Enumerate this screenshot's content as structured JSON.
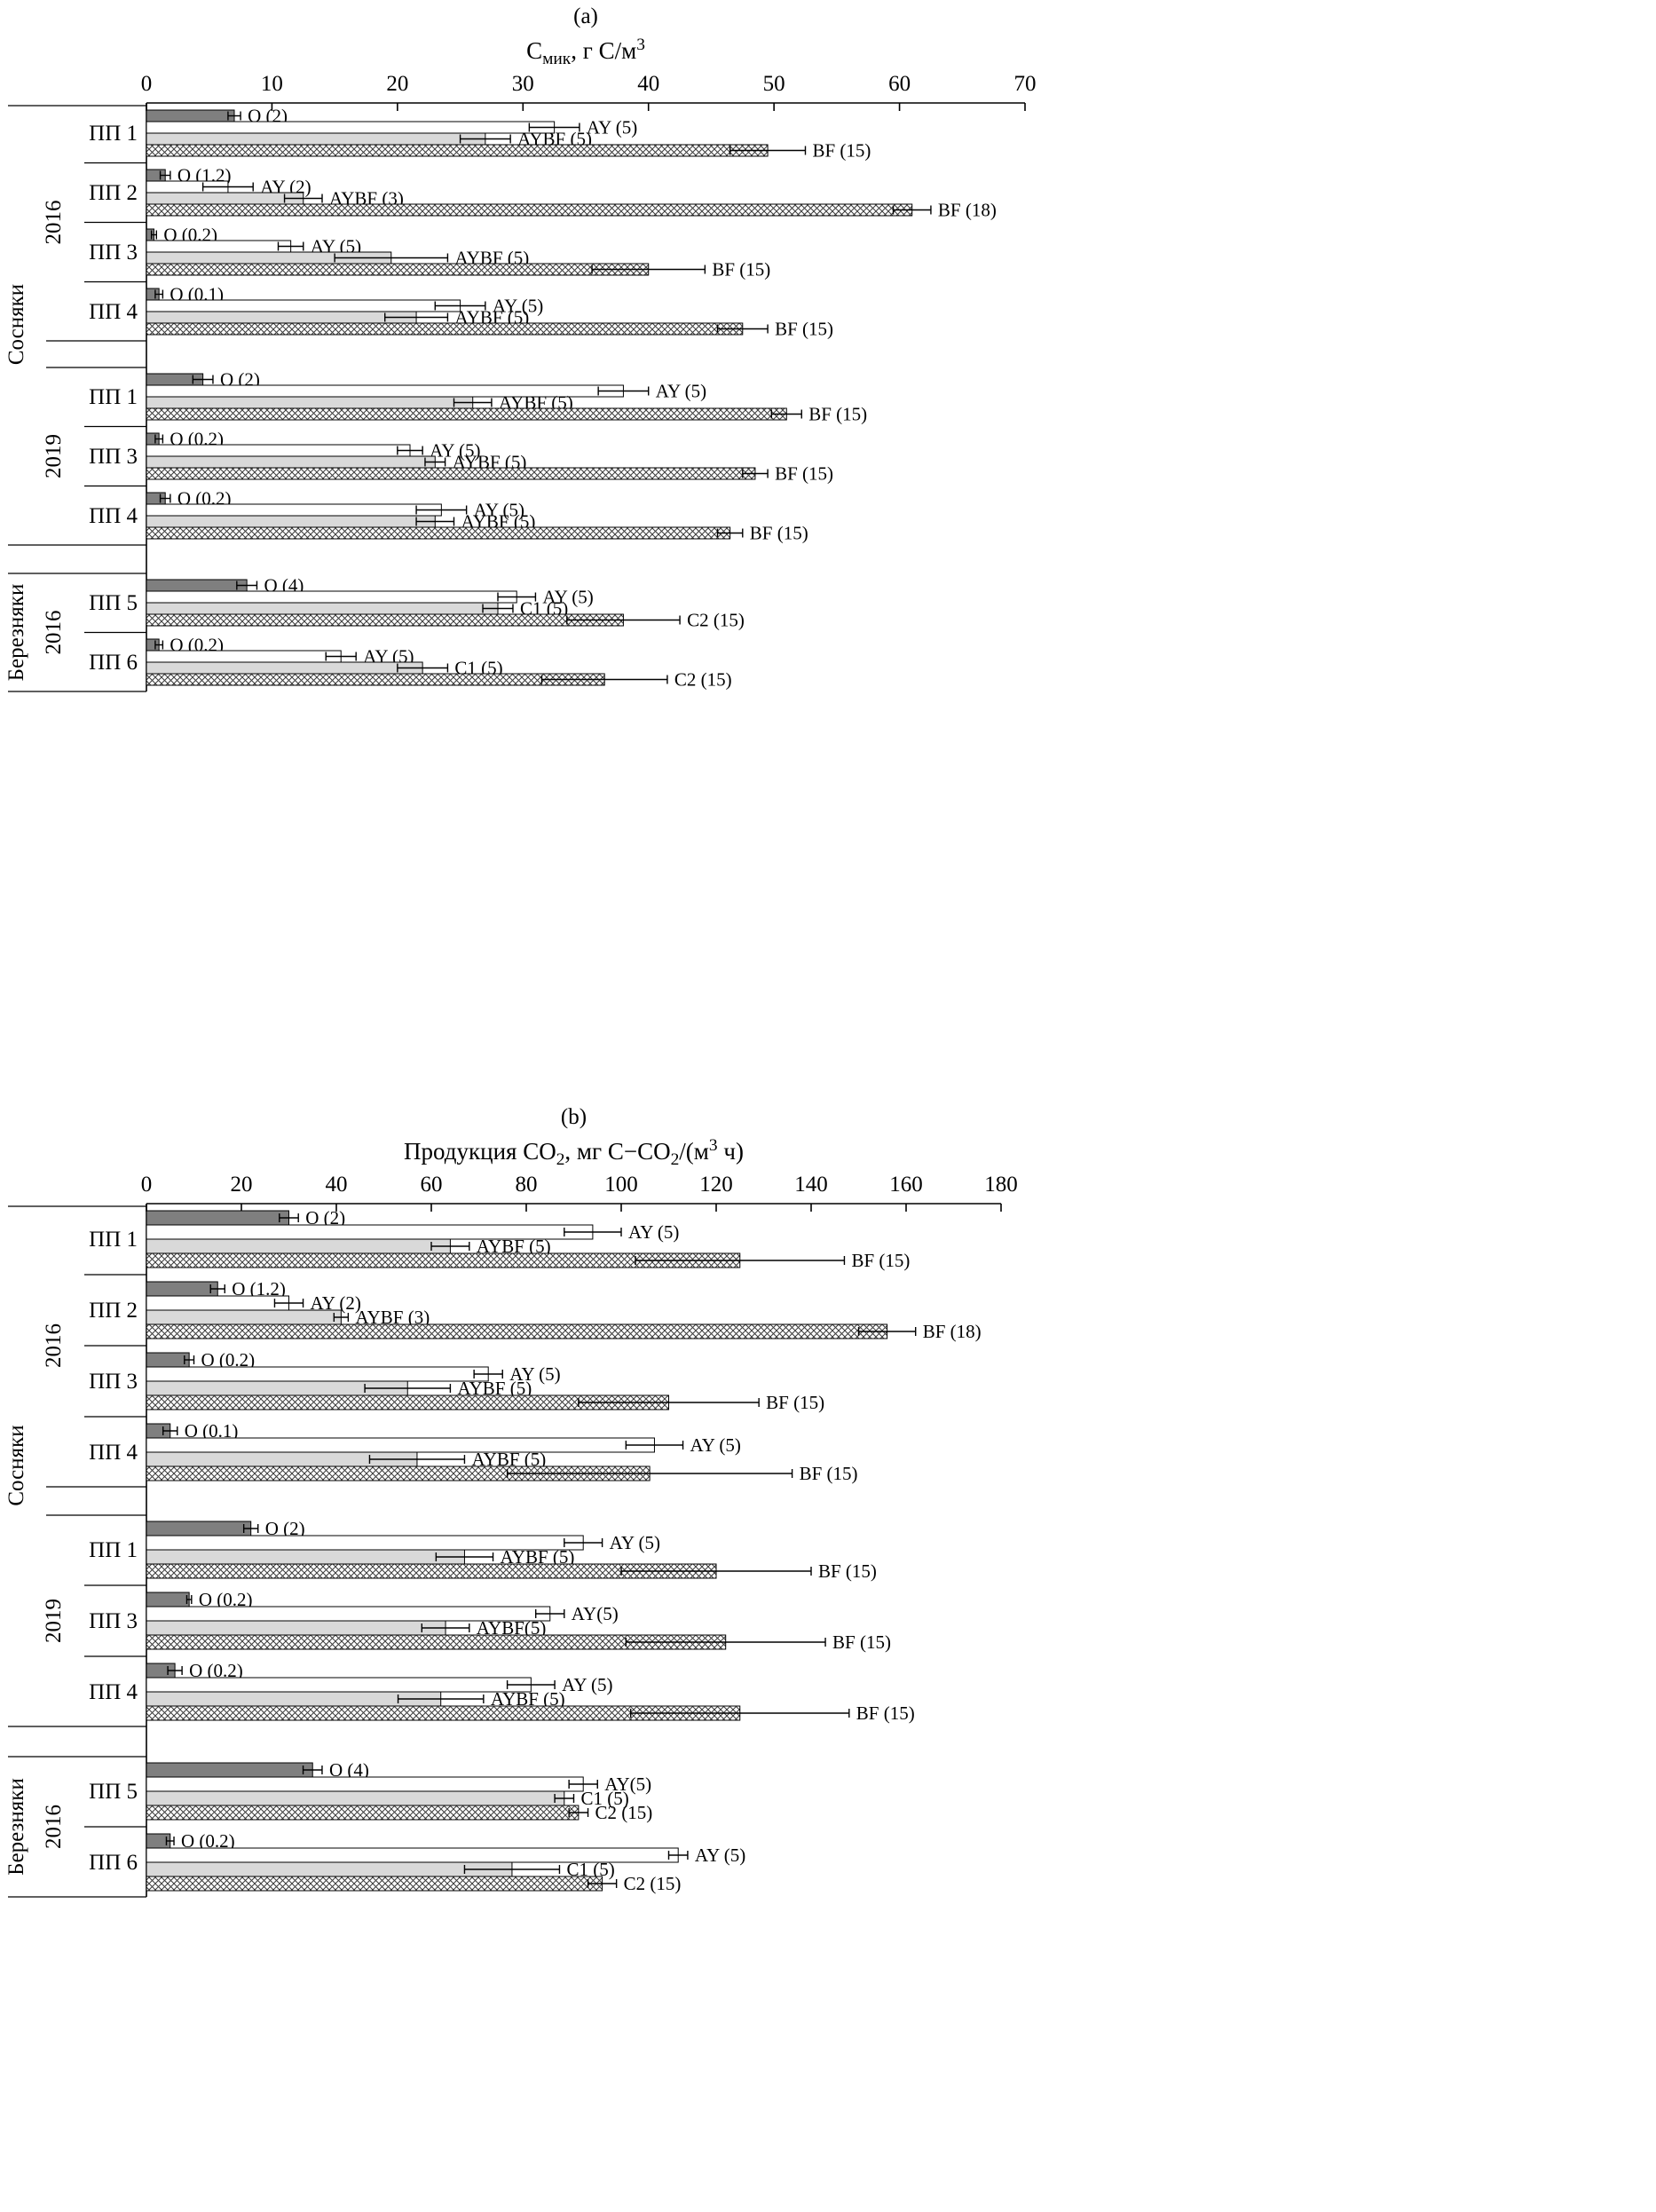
{
  "chart_data": [
    {
      "type": "bar",
      "orientation": "horizontal",
      "panel_label": "(a)",
      "title": "С~мик~, г С/м^3^",
      "xlabel": "",
      "ylabel": "",
      "xlim": [
        0,
        70
      ],
      "xticks": [
        0,
        10,
        20,
        30,
        40,
        50,
        60,
        70
      ],
      "grid": false,
      "legend": "none (labels inline next to bars)",
      "bar_styles": {
        "dark": "#7f7f7f",
        "white": "#ffffff",
        "light": "#d9d9d9",
        "hatch": "crosshatch"
      },
      "groups": [
        {
          "section": "Сосняки",
          "year": "2016",
          "plot": "ПП 1",
          "bars": [
            {
              "label": "O (2)",
              "value": 7,
              "err": 0.5,
              "style": "dark"
            },
            {
              "label": "AY (5)",
              "value": 32.5,
              "err": 2,
              "style": "white"
            },
            {
              "label": "AYBF (5)",
              "value": 27,
              "err": 2,
              "style": "light"
            },
            {
              "label": "BF (15)",
              "value": 49.5,
              "err": 3,
              "style": "hatch"
            }
          ]
        },
        {
          "section": "Сосняки",
          "year": "2016",
          "plot": "ПП 2",
          "bars": [
            {
              "label": "O (1.2)",
              "value": 1.5,
              "err": 0.4,
              "style": "dark"
            },
            {
              "label": "AY (2)",
              "value": 6.5,
              "err": 2,
              "style": "white"
            },
            {
              "label": "AYBF (3)",
              "value": 12.5,
              "err": 1.5,
              "style": "light"
            },
            {
              "label": "BF (18)",
              "value": 61,
              "err": 1.5,
              "style": "hatch"
            }
          ]
        },
        {
          "section": "Сосняки",
          "year": "2016",
          "plot": "ПП 3",
          "bars": [
            {
              "label": "O (0.2)",
              "value": 0.6,
              "err": 0.2,
              "style": "dark"
            },
            {
              "label": "AY (5)",
              "value": 11.5,
              "err": 1,
              "style": "white"
            },
            {
              "label": "AYBF (5)",
              "value": 19.5,
              "err": 4.5,
              "style": "light"
            },
            {
              "label": "BF (15)",
              "value": 40,
              "err": 4.5,
              "style": "hatch"
            }
          ]
        },
        {
          "section": "Сосняки",
          "year": "2016",
          "plot": "ПП 4",
          "bars": [
            {
              "label": "O (0.1)",
              "value": 1,
              "err": 0.3,
              "style": "dark"
            },
            {
              "label": "AY (5)",
              "value": 25,
              "err": 2,
              "style": "white"
            },
            {
              "label": "AYBF (5)",
              "value": 21.5,
              "err": 2.5,
              "style": "light"
            },
            {
              "label": "BF (15)",
              "value": 47.5,
              "err": 2,
              "style": "hatch"
            }
          ]
        },
        {
          "section": "Сосняки",
          "year": "2019",
          "plot": "ПП 1",
          "bars": [
            {
              "label": "O (2)",
              "value": 4.5,
              "err": 0.8,
              "style": "dark"
            },
            {
              "label": "AY (5)",
              "value": 38,
              "err": 2,
              "style": "white"
            },
            {
              "label": "AYBF (5)",
              "value": 26,
              "err": 1.5,
              "style": "light"
            },
            {
              "label": "BF (15)",
              "value": 51,
              "err": 1.2,
              "style": "hatch"
            }
          ]
        },
        {
          "section": "Сосняки",
          "year": "2019",
          "plot": "ПП 3",
          "bars": [
            {
              "label": "O (0.2)",
              "value": 1,
              "err": 0.3,
              "style": "dark"
            },
            {
              "label": "AY (5)",
              "value": 21,
              "err": 1,
              "style": "white"
            },
            {
              "label": "AYBF (5)",
              "value": 23,
              "err": 0.8,
              "style": "light"
            },
            {
              "label": "BF (15)",
              "value": 48.5,
              "err": 1,
              "style": "hatch"
            }
          ]
        },
        {
          "section": "Сосняки",
          "year": "2019",
          "plot": "ПП 4",
          "bars": [
            {
              "label": "O (0.2)",
              "value": 1.5,
              "err": 0.4,
              "style": "dark"
            },
            {
              "label": "AY (5)",
              "value": 23.5,
              "err": 2,
              "style": "white"
            },
            {
              "label": "AYBF (5)",
              "value": 23,
              "err": 1.5,
              "style": "light"
            },
            {
              "label": "BF (15)",
              "value": 46.5,
              "err": 1,
              "style": "hatch"
            }
          ]
        },
        {
          "section": "Березняки",
          "year": "2016",
          "plot": "ПП 5",
          "bars": [
            {
              "label": "O (4)",
              "value": 8,
              "err": 0.8,
              "style": "dark"
            },
            {
              "label": "AY (5)",
              "value": 29.5,
              "err": 1.5,
              "style": "white"
            },
            {
              "label": "C1 (5)",
              "value": 28,
              "err": 1.2,
              "style": "light"
            },
            {
              "label": "C2 (15)",
              "value": 38,
              "err": 4.5,
              "style": "hatch"
            }
          ]
        },
        {
          "section": "Березняки",
          "year": "2016",
          "plot": "ПП 6",
          "bars": [
            {
              "label": "O (0.2)",
              "value": 1,
              "err": 0.3,
              "style": "dark"
            },
            {
              "label": "AY (5)",
              "value": 15.5,
              "err": 1.2,
              "style": "white"
            },
            {
              "label": "C1 (5)",
              "value": 22,
              "err": 2,
              "style": "light"
            },
            {
              "label": "C2 (15)",
              "value": 36.5,
              "err": 5,
              "style": "hatch"
            }
          ]
        }
      ]
    },
    {
      "type": "bar",
      "orientation": "horizontal",
      "panel_label": "(b)",
      "title": "Продукция СО~2~, мг С−СО~2~/(м^3^ ч)",
      "xlabel": "",
      "ylabel": "",
      "xlim": [
        0,
        180
      ],
      "xticks": [
        0,
        20,
        40,
        60,
        80,
        100,
        120,
        140,
        160,
        180
      ],
      "grid": false,
      "legend": "none (labels inline next to bars)",
      "bar_styles": {
        "dark": "#7f7f7f",
        "white": "#ffffff",
        "light": "#d9d9d9",
        "hatch": "crosshatch"
      },
      "groups": [
        {
          "section": "Сосняки",
          "year": "2016",
          "plot": "ПП 1",
          "bars": [
            {
              "label": "O (2)",
              "value": 30,
              "err": 2,
              "style": "dark"
            },
            {
              "label": "AY (5)",
              "value": 94,
              "err": 6,
              "style": "white"
            },
            {
              "label": "AYBF (5)",
              "value": 64,
              "err": 4,
              "style": "light"
            },
            {
              "label": "BF (15)",
              "value": 125,
              "err": 22,
              "style": "hatch"
            }
          ]
        },
        {
          "section": "Сосняки",
          "year": "2016",
          "plot": "ПП 2",
          "bars": [
            {
              "label": "O (1.2)",
              "value": 15,
              "err": 1.5,
              "style": "dark"
            },
            {
              "label": "AY (2)",
              "value": 30,
              "err": 3,
              "style": "white"
            },
            {
              "label": "AYBF (3)",
              "value": 41,
              "err": 1.5,
              "style": "light"
            },
            {
              "label": "BF (18)",
              "value": 156,
              "err": 6,
              "style": "hatch"
            }
          ]
        },
        {
          "section": "Сосняки",
          "year": "2016",
          "plot": "ПП 3",
          "bars": [
            {
              "label": "O (0.2)",
              "value": 9,
              "err": 1,
              "style": "dark"
            },
            {
              "label": "AY (5)",
              "value": 72,
              "err": 3,
              "style": "white"
            },
            {
              "label": "AYBF (5)",
              "value": 55,
              "err": 9,
              "style": "light"
            },
            {
              "label": "BF (15)",
              "value": 110,
              "err": 19,
              "style": "hatch"
            }
          ]
        },
        {
          "section": "Сосняки",
          "year": "2016",
          "plot": "ПП 4",
          "bars": [
            {
              "label": "O (0.1)",
              "value": 5,
              "err": 1.5,
              "style": "dark"
            },
            {
              "label": "AY (5)",
              "value": 107,
              "err": 6,
              "style": "white"
            },
            {
              "label": "AYBF (5)",
              "value": 57,
              "err": 10,
              "style": "light"
            },
            {
              "label": "BF (15)",
              "value": 106,
              "err": 30,
              "style": "hatch"
            }
          ]
        },
        {
          "section": "Сосняки",
          "year": "2019",
          "plot": "ПП 1",
          "bars": [
            {
              "label": "O (2)",
              "value": 22,
              "err": 1.5,
              "style": "dark"
            },
            {
              "label": "AY (5)",
              "value": 92,
              "err": 4,
              "style": "white"
            },
            {
              "label": "AYBF (5)",
              "value": 67,
              "err": 6,
              "style": "light"
            },
            {
              "label": "BF (15)",
              "value": 120,
              "err": 20,
              "style": "hatch"
            }
          ]
        },
        {
          "section": "Сосняки",
          "year": "2019",
          "plot": "ПП 3",
          "bars": [
            {
              "label": "O (0.2)",
              "value": 9,
              "err": 0.5,
              "style": "dark"
            },
            {
              "label": "AY(5)",
              "value": 85,
              "err": 3,
              "style": "white"
            },
            {
              "label": "AYBF(5)",
              "value": 63,
              "err": 5,
              "style": "light"
            },
            {
              "label": "BF (15)",
              "value": 122,
              "err": 21,
              "style": "hatch"
            }
          ]
        },
        {
          "section": "Сосняки",
          "year": "2019",
          "plot": "ПП 4",
          "bars": [
            {
              "label": "O (0.2)",
              "value": 6,
              "err": 1.5,
              "style": "dark"
            },
            {
              "label": "AY (5)",
              "value": 81,
              "err": 5,
              "style": "white"
            },
            {
              "label": "AYBF (5)",
              "value": 62,
              "err": 9,
              "style": "light"
            },
            {
              "label": "BF (15)",
              "value": 125,
              "err": 23,
              "style": "hatch"
            }
          ]
        },
        {
          "section": "Березняки",
          "year": "2016",
          "plot": "ПП 5",
          "bars": [
            {
              "label": "O (4)",
              "value": 35,
              "err": 2,
              "style": "dark"
            },
            {
              "label": "AY(5)",
              "value": 92,
              "err": 3,
              "style": "white"
            },
            {
              "label": "C1 (5)",
              "value": 88,
              "err": 2,
              "style": "light"
            },
            {
              "label": "C2 (15)",
              "value": 91,
              "err": 2,
              "style": "hatch"
            }
          ]
        },
        {
          "section": "Березняки",
          "year": "2016",
          "plot": "ПП 6",
          "bars": [
            {
              "label": "O (0.2)",
              "value": 5,
              "err": 0.8,
              "style": "dark"
            },
            {
              "label": "AY (5)",
              "value": 112,
              "err": 2,
              "style": "white"
            },
            {
              "label": "C1 (5)",
              "value": 77,
              "err": 10,
              "style": "light"
            },
            {
              "label": "C2 (15)",
              "value": 96,
              "err": 3,
              "style": "hatch"
            }
          ]
        }
      ]
    }
  ]
}
